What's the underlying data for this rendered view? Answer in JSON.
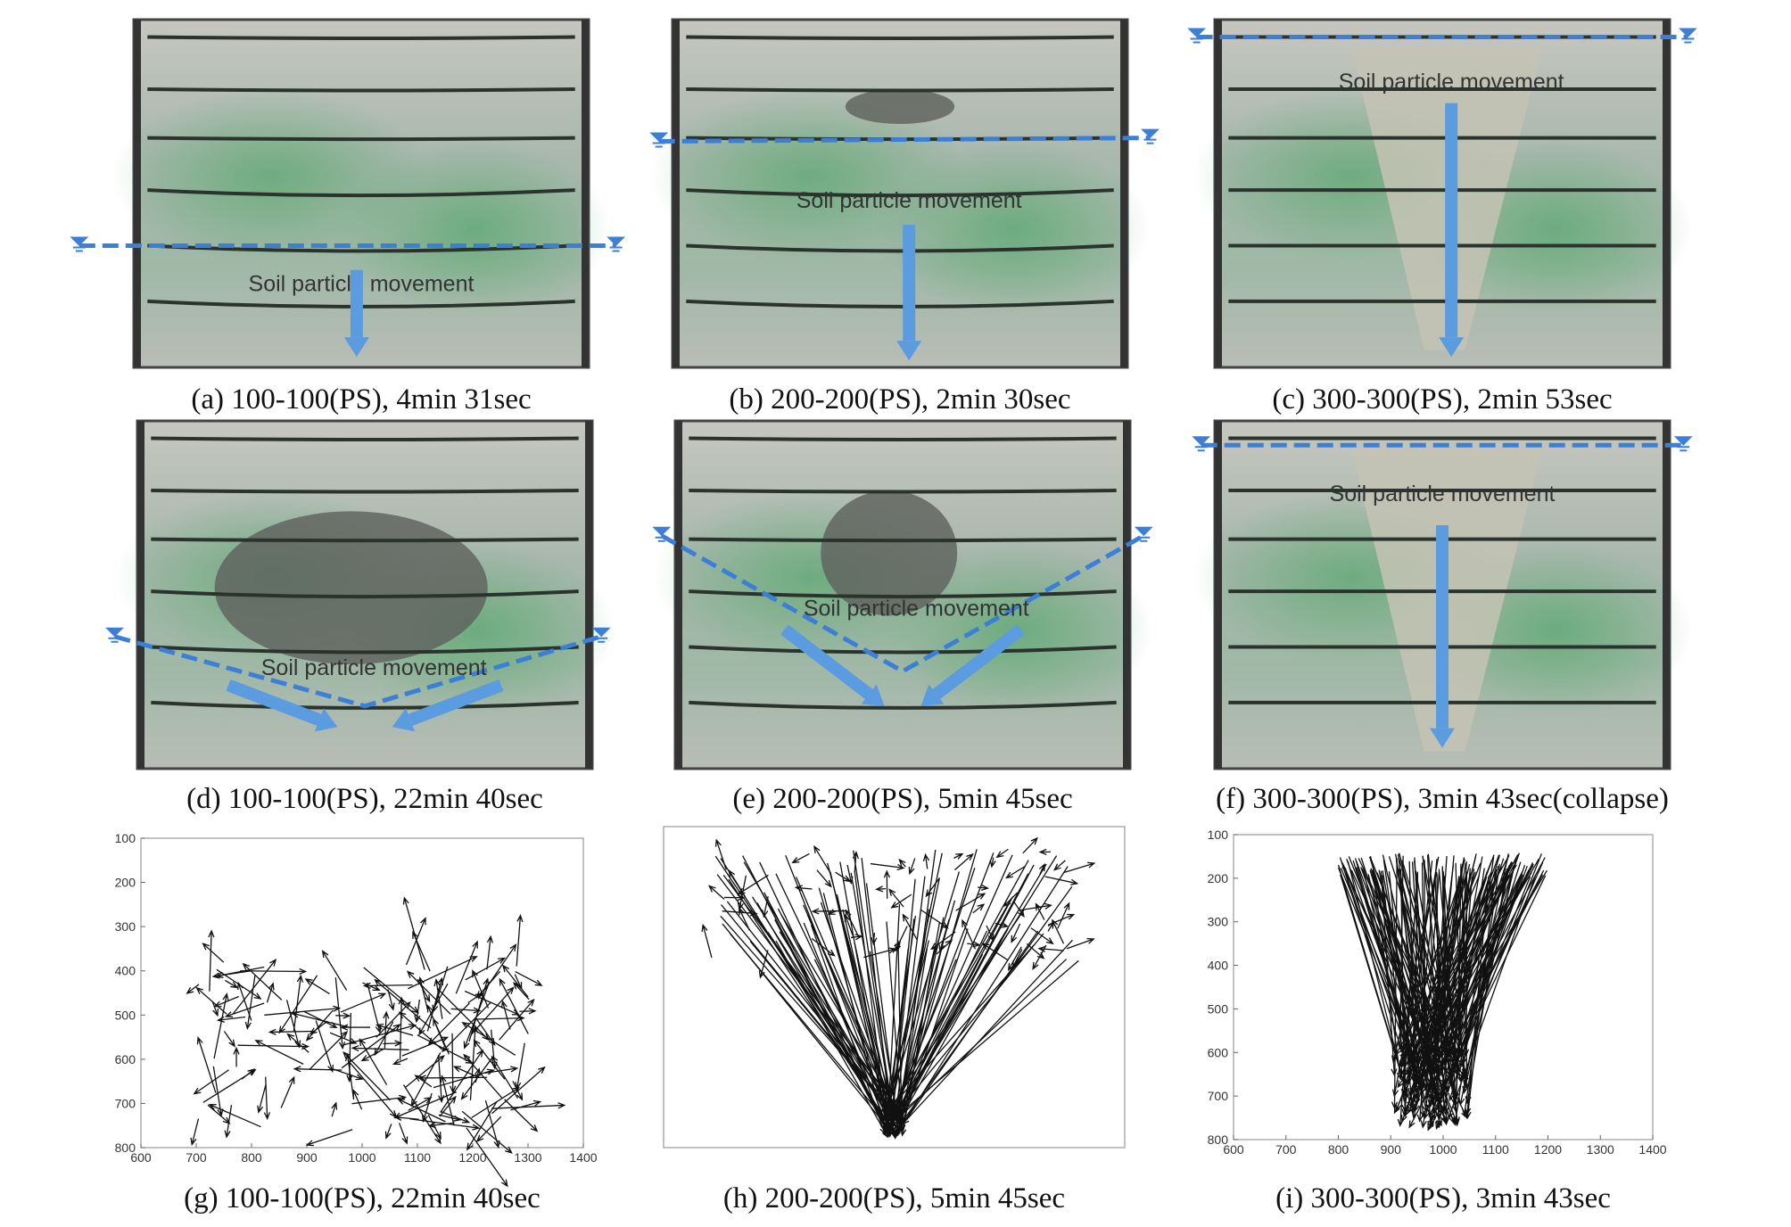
{
  "panels": [
    {
      "caption": "(a) 100-100(PS), 4min 31sec",
      "annotation": "Soil particle movement"
    },
    {
      "caption": "(b) 200-200(PS), 2min 30sec",
      "annotation": "Soil particle movement"
    },
    {
      "caption": "(c) 300-300(PS), 2min 53sec",
      "annotation": "Soil particle movement"
    },
    {
      "caption": "(d) 100-100(PS), 22min 40sec",
      "annotation": "Soil particle movement"
    },
    {
      "caption": "(e) 200-200(PS), 5min 45sec",
      "annotation": "Soil particle movement"
    },
    {
      "caption": "(f) 300-300(PS), 3min 43sec(collapse)",
      "annotation": "Soil particle movement"
    }
  ],
  "plots": [
    {
      "caption": "(g) 100-100(PS), 22min 40sec",
      "xticks": [
        600,
        700,
        800,
        900,
        1000,
        1100,
        1200,
        1300,
        1400
      ],
      "yticks": [
        100,
        200,
        300,
        400,
        500,
        600,
        700,
        800
      ]
    },
    {
      "caption": "(h) 200-200(PS), 5min 45sec"
    },
    {
      "caption": "(i) 300-300(PS), 3min 43sec",
      "xticks": [
        600,
        700,
        800,
        900,
        1000,
        1100,
        1200,
        1300,
        1400
      ],
      "yticks": [
        100,
        200,
        300,
        400,
        500,
        600,
        700,
        800
      ]
    }
  ]
}
